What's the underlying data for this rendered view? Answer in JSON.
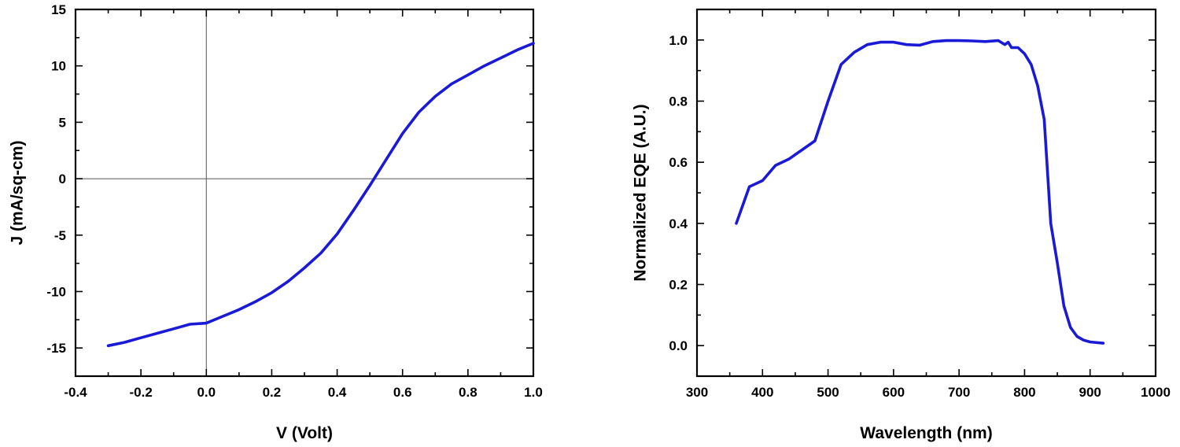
{
  "chart_data": [
    {
      "type": "line",
      "xlabel": "V (Volt)",
      "ylabel": "J (mA/sq-cm)",
      "xlim": [
        -0.4,
        1.0
      ],
      "ylim": [
        -17.5,
        15
      ],
      "xticks": [
        -0.4,
        -0.2,
        0.0,
        0.2,
        0.4,
        0.6,
        0.8,
        1.0
      ],
      "xtick_labels": [
        "-0.4",
        "-0.2",
        "0.0",
        "0.2",
        "0.4",
        "0.6",
        "0.8",
        "1.0"
      ],
      "yticks": [
        -15,
        -10,
        -5,
        0,
        5,
        10,
        15
      ],
      "ytick_labels": [
        "-15",
        "-10",
        "-5",
        "0",
        "5",
        "10",
        "15"
      ],
      "zero_lines": true,
      "color": "#1a1ad6",
      "series": [
        {
          "x": [
            -0.3,
            -0.25,
            -0.2,
            -0.15,
            -0.1,
            -0.05,
            0.0,
            0.05,
            0.1,
            0.15,
            0.2,
            0.25,
            0.3,
            0.35,
            0.4,
            0.45,
            0.5,
            0.55,
            0.6,
            0.65,
            0.7,
            0.75,
            0.8,
            0.85,
            0.9,
            0.95,
            1.0
          ],
          "y": [
            -14.8,
            -14.5,
            -14.1,
            -13.7,
            -13.3,
            -12.9,
            -12.8,
            -12.2,
            -11.6,
            -10.9,
            -10.1,
            -9.1,
            -7.9,
            -6.6,
            -4.9,
            -2.8,
            -0.6,
            1.7,
            4.0,
            5.9,
            7.3,
            8.4,
            9.2,
            10.0,
            10.7,
            11.4,
            12.0
          ]
        }
      ]
    },
    {
      "type": "line",
      "xlabel": "Wavelength (nm)",
      "ylabel": "Normalized EQE (A.U.)",
      "xlim": [
        300,
        1000
      ],
      "ylim": [
        -0.1,
        1.1
      ],
      "xticks": [
        300,
        400,
        500,
        600,
        700,
        800,
        900,
        1000
      ],
      "xtick_labels": [
        "300",
        "400",
        "500",
        "600",
        "700",
        "800",
        "900",
        "1000"
      ],
      "yticks": [
        0.0,
        0.2,
        0.4,
        0.6,
        0.8,
        1.0
      ],
      "ytick_labels": [
        "0.0",
        "0.2",
        "0.4",
        "0.6",
        "0.8",
        "1.0"
      ],
      "color": "#1a1ad6",
      "series": [
        {
          "x": [
            360,
            380,
            400,
            420,
            440,
            460,
            480,
            500,
            520,
            540,
            560,
            580,
            600,
            620,
            640,
            660,
            680,
            700,
            720,
            740,
            760,
            770,
            775,
            780,
            790,
            800,
            810,
            820,
            830,
            840,
            850,
            860,
            870,
            880,
            890,
            900,
            920
          ],
          "y": [
            0.4,
            0.52,
            0.54,
            0.59,
            0.61,
            0.64,
            0.67,
            0.8,
            0.92,
            0.96,
            0.985,
            0.993,
            0.993,
            0.985,
            0.983,
            0.995,
            0.998,
            0.998,
            0.997,
            0.995,
            0.998,
            0.985,
            0.993,
            0.975,
            0.975,
            0.955,
            0.92,
            0.85,
            0.74,
            0.4,
            0.27,
            0.13,
            0.06,
            0.03,
            0.018,
            0.012,
            0.008
          ]
        }
      ]
    }
  ]
}
